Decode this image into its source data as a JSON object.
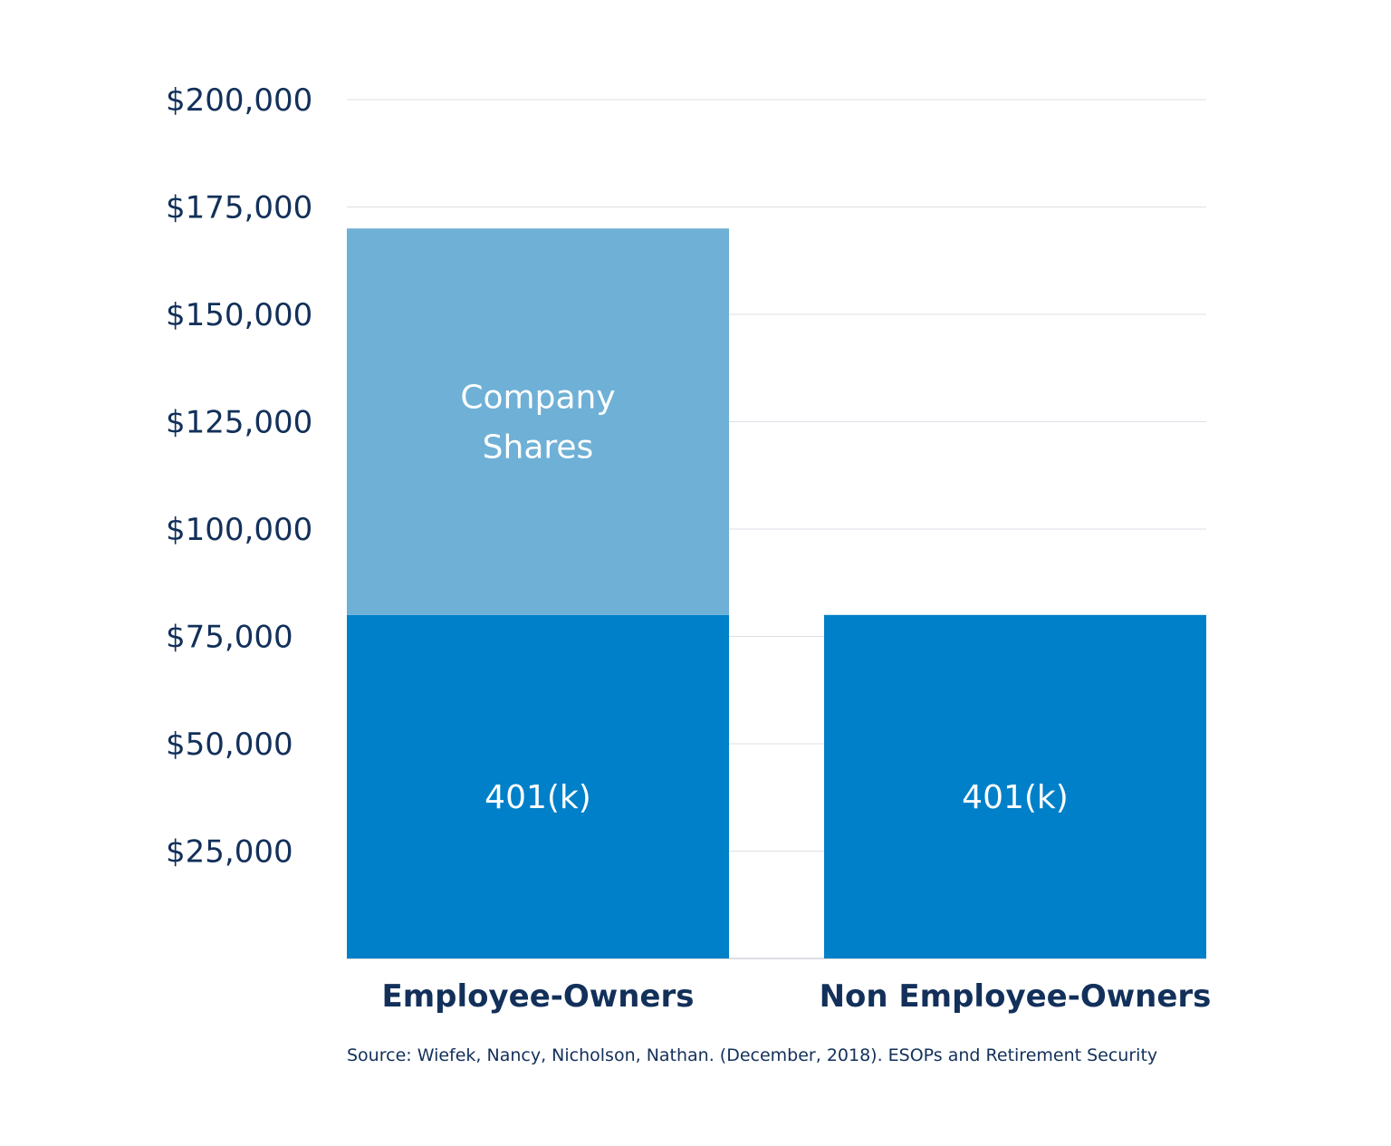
{
  "chart_data": {
    "type": "bar",
    "stacked": true,
    "title": "",
    "xlabel": "",
    "ylabel": "",
    "categories": [
      "Employee-Owners",
      "Non Employee-Owners"
    ],
    "series": [
      {
        "name": "401(k)",
        "values": [
          80000,
          80000
        ],
        "color": "#0080c9",
        "labels": [
          "401(k)",
          "401(k)"
        ]
      },
      {
        "name": "Company Shares",
        "values": [
          90000,
          0
        ],
        "color": "#6fb0d6",
        "labels": [
          "Company Shares",
          ""
        ]
      }
    ],
    "ylim": [
      0,
      200000
    ],
    "yticks": [
      25000,
      50000,
      75000,
      100000,
      125000,
      150000,
      175000,
      200000
    ],
    "ytick_labels": [
      "$25,000",
      "$50,000",
      "$75,000",
      "$100,000",
      "$125,000",
      "$150,000",
      "$175,000",
      "$200,000"
    ],
    "grid": true,
    "legend": "none",
    "source": "Source: Wiefek, Nancy, Nicholson, Nathan. (December, 2018). ESOPs and Retirement Security"
  }
}
